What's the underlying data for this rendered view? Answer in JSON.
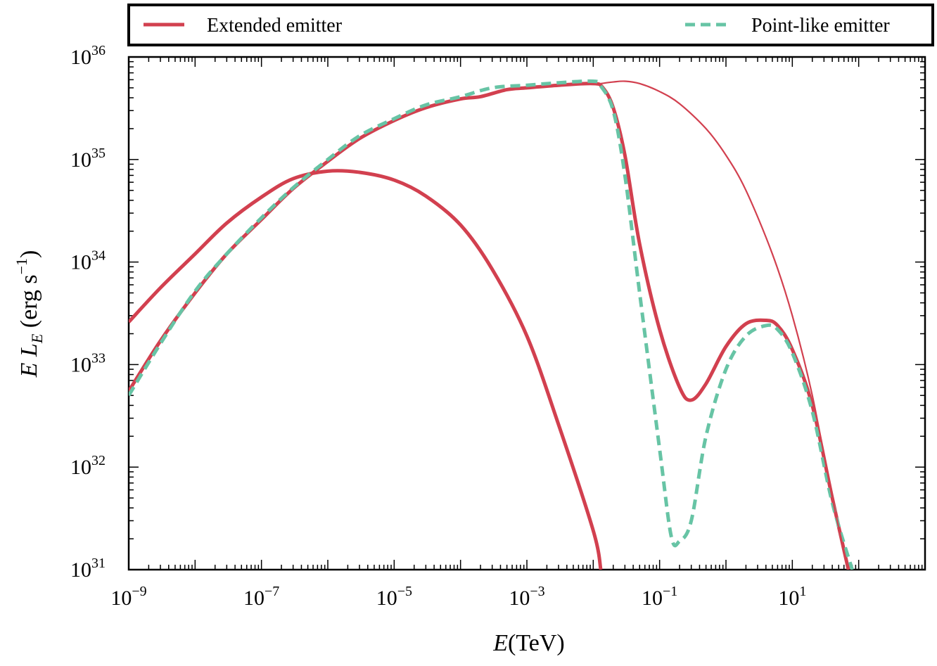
{
  "chart_data": {
    "type": "line",
    "xscale": "log",
    "yscale": "log",
    "xlabel": {
      "italic": "E",
      "rest": "(TeV)"
    },
    "ylabel": {
      "italic_e": "E",
      "italic_l": "L",
      "sub": "E",
      "rest": "(erg s",
      "sup": "−1",
      "close": ")"
    },
    "xlim": [
      1e-09,
      1000
    ],
    "ylim": [
      1e+31,
      1e+36
    ],
    "x_ticks": [
      {
        "value": 1e-09,
        "base": "10",
        "exp": "−9"
      },
      {
        "value": 1e-07,
        "base": "10",
        "exp": "−7"
      },
      {
        "value": 1e-05,
        "base": "10",
        "exp": "−5"
      },
      {
        "value": 0.001,
        "base": "10",
        "exp": "−3"
      },
      {
        "value": 0.1,
        "base": "10",
        "exp": "−1"
      },
      {
        "value": 10,
        "base": "10",
        "exp": "1"
      }
    ],
    "y_ticks": [
      {
        "value": 1e+31,
        "base": "10",
        "exp": "31"
      },
      {
        "value": 1e+32,
        "base": "10",
        "exp": "32"
      },
      {
        "value": 1e+33,
        "base": "10",
        "exp": "33"
      },
      {
        "value": 1e+34,
        "base": "10",
        "exp": "34"
      },
      {
        "value": 1e+35,
        "base": "10",
        "exp": "35"
      },
      {
        "value": 1e+36,
        "base": "10",
        "exp": "36"
      }
    ],
    "legend": {
      "position": "top, above plot",
      "entries": [
        {
          "label": "Extended emitter",
          "color": "#d2404f",
          "style": "solid"
        },
        {
          "label": "Point-like emitter",
          "color": "#67c4a5",
          "style": "dashed"
        }
      ]
    },
    "series": [
      {
        "name": "Extended emitter (low-energy component)",
        "color": "#d2404f",
        "style": "solid",
        "width": "thick",
        "x": [
          1e-09,
          3e-09,
          1e-08,
          3e-08,
          1e-07,
          3e-07,
          1e-06,
          3e-06,
          1e-05,
          3e-05,
          0.0001,
          0.0003,
          0.001,
          0.003,
          0.01,
          0.013
        ],
        "y": [
          2.6e+33,
          5.6e+33,
          1.2e+34,
          2.4e+34,
          4.3e+34,
          6.5e+34,
          7.7e+34,
          7.5e+34,
          6.3e+34,
          4.4e+34,
          2.3e+34,
          8.5e+33,
          1.9e+33,
          2.6e+32,
          2.4e+31,
          1e+31
        ]
      },
      {
        "name": "Extended emitter (total)",
        "color": "#d2404f",
        "style": "solid",
        "width": "thick",
        "x": [
          1e-09,
          3e-09,
          1e-08,
          3e-08,
          1e-07,
          3e-07,
          1e-06,
          3e-06,
          1e-05,
          3e-05,
          0.0001,
          0.0002,
          0.0005,
          0.001,
          0.003,
          0.01,
          0.014,
          0.02,
          0.03,
          0.05,
          0.1,
          0.2,
          0.3,
          0.5,
          1,
          2,
          4,
          6,
          10,
          20,
          40,
          70
        ],
        "y": [
          5.5e+32,
          1.7e+33,
          5e+33,
          1.2e+34,
          2.6e+34,
          5.2e+34,
          9.6e+34,
          1.6e+35,
          2.4e+35,
          3.2e+35,
          3.9e+35,
          4.1e+35,
          4.8e+35,
          5e+35,
          5.3e+35,
          5.5e+35,
          5e+35,
          3.2e+35,
          1.1e+35,
          1.5e+34,
          2.2e+33,
          6e+32,
          4.5e+32,
          6.5e+32,
          1.5e+33,
          2.5e+33,
          2.7e+33,
          2.4e+33,
          1.4e+33,
          4e+32,
          5e+31,
          1e+31
        ]
      },
      {
        "name": "Point-like emitter (total)",
        "color": "#67c4a5",
        "style": "dashed",
        "width": "thick",
        "x": [
          1e-09,
          3e-09,
          1e-08,
          3e-08,
          1e-07,
          3e-07,
          1e-06,
          3e-06,
          1e-05,
          3e-05,
          0.0001,
          0.0003,
          0.001,
          0.003,
          0.01,
          0.013,
          0.02,
          0.03,
          0.05,
          0.1,
          0.15,
          0.2,
          0.3,
          0.5,
          1,
          2,
          4,
          6,
          10,
          20,
          40,
          80
        ],
        "y": [
          5e+32,
          1.6e+33,
          5.2e+33,
          1.2e+34,
          2.7e+34,
          5.3e+34,
          1e+35,
          1.7e+35,
          2.5e+35,
          3.4e+35,
          4.1e+35,
          5e+35,
          5.3e+35,
          5.6e+35,
          5.8e+35,
          5.2e+35,
          3e+35,
          7e+34,
          5e+33,
          1.5e+32,
          2.1e+31,
          1.9e+31,
          3e+31,
          2e+32,
          9e+32,
          1.9e+33,
          2.4e+33,
          2.2e+33,
          1.3e+33,
          3.5e+32,
          4.5e+31,
          1e+31
        ]
      },
      {
        "name": "Extended emitter (thin curve)",
        "color": "#d2404f",
        "style": "solid",
        "width": "thin",
        "x": [
          0.013,
          0.02,
          0.03,
          0.05,
          0.1,
          0.2,
          0.5,
          1,
          2,
          5,
          10,
          20,
          40,
          70
        ],
        "y": [
          5.5e+35,
          5.7e+35,
          5.8e+35,
          5.5e+35,
          4.6e+35,
          3.5e+35,
          2e+35,
          1.1e+35,
          5e+34,
          1.2e+34,
          3e+33,
          5e+32,
          5e+31,
          1e+31
        ]
      }
    ]
  }
}
